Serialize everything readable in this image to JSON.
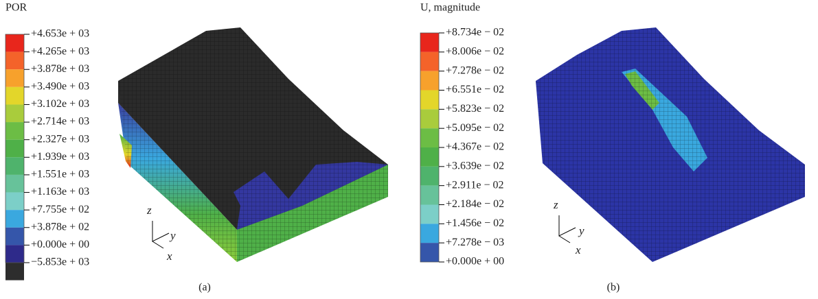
{
  "panels": [
    {
      "title": "POR",
      "caption": "(a)",
      "legend_labels": [
        "+4.653e + 03",
        "+4.265e + 03",
        "+3.878e + 03",
        "+3.490e + 03",
        "+3.102e + 03",
        "+2.714e + 03",
        "+2.327e + 03",
        "+1.939e + 03",
        "+1.551e + 03",
        "+1.163e + 03",
        "+7.755e + 02",
        "+3.878e + 02",
        "+0.000e + 00",
        "−5.853e + 03"
      ],
      "legend_colors": [
        "#e8261c",
        "#f4632a",
        "#f7a12c",
        "#e3d62a",
        "#a9cc3c",
        "#6cbd45",
        "#4fb048",
        "#4fb36c",
        "#67c29a",
        "#7ccfc8",
        "#3aa8df",
        "#3556aa",
        "#2e2a8a",
        "#2d2d2d"
      ],
      "axes": {
        "z": "z",
        "y": "y",
        "x": "x"
      }
    },
    {
      "title": "U, magnitude",
      "caption": "(b)",
      "legend_labels": [
        "+8.734e − 02",
        "+8.006e − 02",
        "+7.278e − 02",
        "+6.551e − 02",
        "+5.823e − 02",
        "+5.095e − 02",
        "+4.367e − 02",
        "+3.639e − 02",
        "+2.911e − 02",
        "+2.184e − 02",
        "+1.456e − 02",
        "+7.278e − 03",
        "+0.000e + 00"
      ],
      "legend_colors": [
        "#e8261c",
        "#f4632a",
        "#f7a12c",
        "#e3d62a",
        "#a9cc3c",
        "#6cbd45",
        "#4fb048",
        "#4fb36c",
        "#67c29a",
        "#7ccfc8",
        "#3aa8df",
        "#3556aa"
      ],
      "axes": {
        "z": "z",
        "y": "y",
        "x": "x"
      }
    }
  ]
}
